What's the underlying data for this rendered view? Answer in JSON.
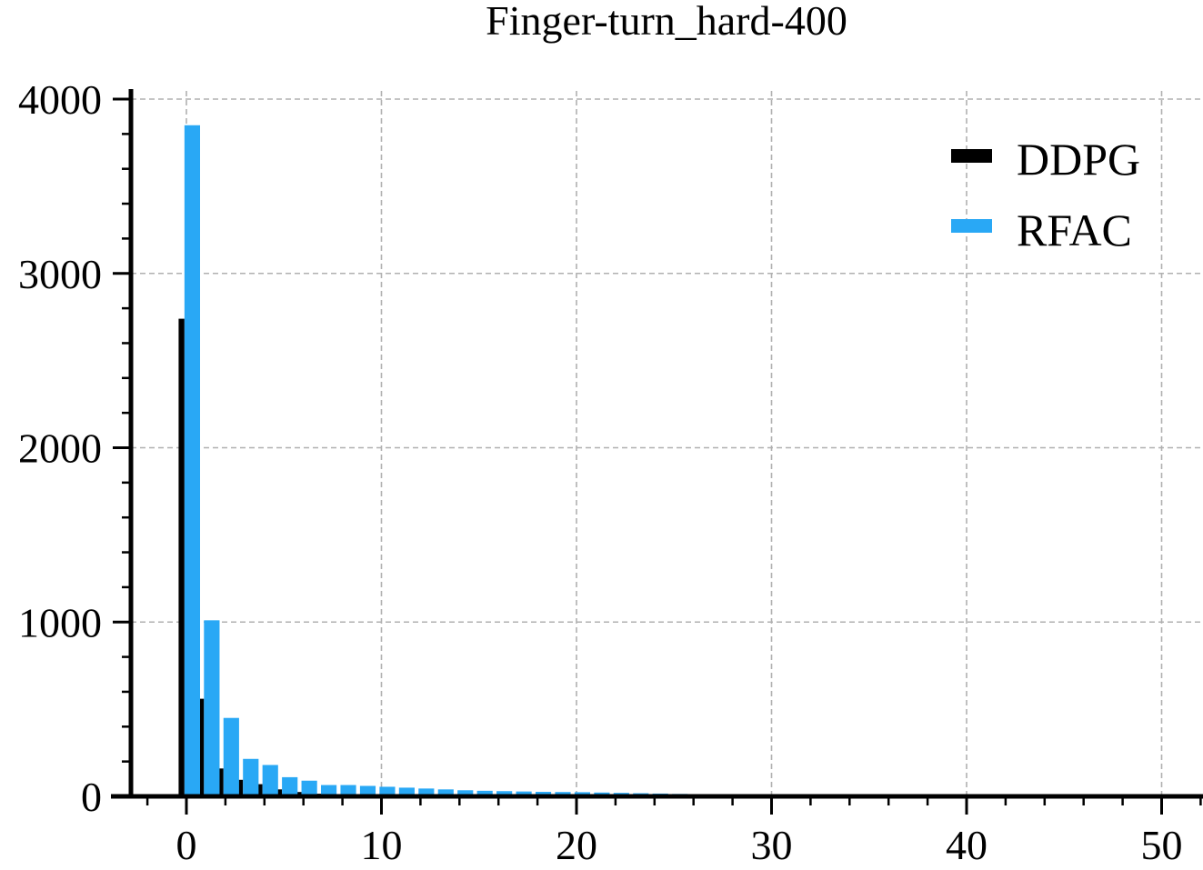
{
  "chart_data": {
    "type": "bar",
    "title": "Finger-turn_hard-400",
    "xlabel": "",
    "ylabel": "",
    "xlim": [
      -3,
      52
    ],
    "ylim": [
      0,
      4050
    ],
    "xticks": [
      0,
      10,
      20,
      30,
      40,
      50
    ],
    "yticks": [
      0,
      1000,
      2000,
      3000,
      4000
    ],
    "grid": true,
    "legend_position": "top-right",
    "series": [
      {
        "name": "DDPG",
        "color": "#000000",
        "offset": -0.25,
        "width": 0.3,
        "x": [
          0,
          1,
          2,
          3,
          4,
          5,
          6,
          7,
          8,
          9,
          10
        ],
        "values": [
          2740,
          560,
          160,
          95,
          70,
          40,
          25,
          15,
          8,
          5,
          3
        ]
      },
      {
        "name": "RFAC",
        "color": "#29a8f5",
        "offset": 0.3,
        "width": 0.8,
        "x": [
          0,
          1,
          2,
          3,
          4,
          5,
          6,
          7,
          8,
          9,
          10,
          11,
          12,
          13,
          14,
          15,
          16,
          17,
          18,
          19,
          20,
          21,
          22,
          23,
          24,
          25,
          26
        ],
        "values": [
          3850,
          1010,
          450,
          215,
          180,
          110,
          90,
          65,
          65,
          60,
          55,
          50,
          45,
          40,
          35,
          32,
          30,
          28,
          26,
          25,
          24,
          22,
          20,
          18,
          16,
          14,
          12
        ]
      }
    ]
  }
}
